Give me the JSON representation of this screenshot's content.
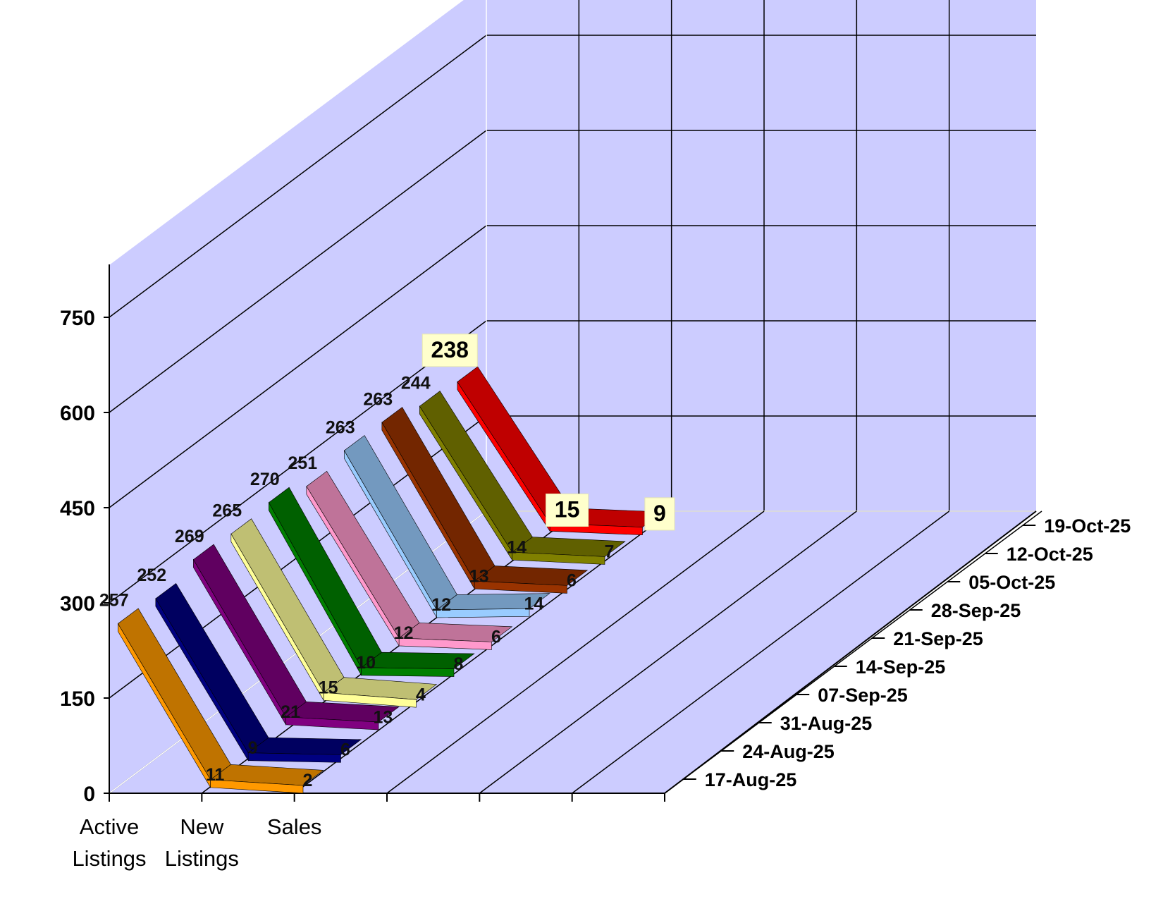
{
  "chart_data": {
    "type": "line",
    "title": "",
    "categories": [
      "Active Listings",
      "New Listings",
      "Sales"
    ],
    "category_labels": [
      [
        "Active",
        "Listings"
      ],
      [
        "New",
        "Listings"
      ],
      [
        "Sales"
      ]
    ],
    "y_ticks": [
      "0",
      "150",
      "300",
      "450",
      "600",
      "750"
    ],
    "ylim": [
      0,
      750
    ],
    "grid": true,
    "wall_color": "#ccccff",
    "series": [
      {
        "name": "17-Aug-25",
        "values": [
          257,
          11,
          2
        ],
        "color": "#ff9900"
      },
      {
        "name": "24-Aug-25",
        "values": [
          252,
          9,
          6
        ],
        "color": "#000080"
      },
      {
        "name": "31-Aug-25",
        "values": [
          269,
          21,
          13
        ],
        "color": "#800080"
      },
      {
        "name": "07-Sep-25",
        "values": [
          265,
          15,
          4
        ],
        "color": "#ffff99"
      },
      {
        "name": "14-Sep-25",
        "values": [
          270,
          10,
          8
        ],
        "color": "#008000"
      },
      {
        "name": "21-Sep-25",
        "values": [
          251,
          12,
          6
        ],
        "color": "#ff99cc"
      },
      {
        "name": "28-Sep-25",
        "values": [
          263,
          12,
          14
        ],
        "color": "#99ccff"
      },
      {
        "name": "05-Oct-25",
        "values": [
          263,
          13,
          6
        ],
        "color": "#993300"
      },
      {
        "name": "12-Oct-25",
        "values": [
          244,
          14,
          7
        ],
        "color": "#808000"
      },
      {
        "name": "19-Oct-25",
        "values": [
          238,
          15,
          9
        ],
        "color": "#ff0000",
        "highlight": true
      }
    ]
  }
}
